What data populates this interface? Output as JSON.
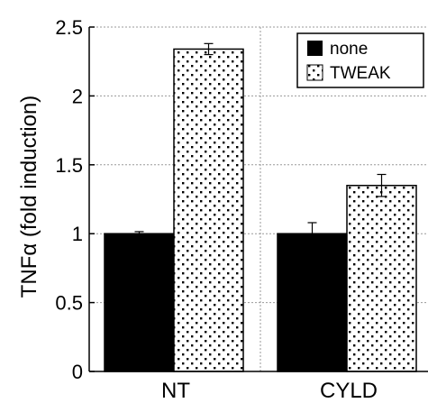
{
  "chart_data": {
    "type": "bar",
    "title": "",
    "xlabel": "",
    "ylabel": {
      "prefix": "TNF",
      "symbol": "α",
      "suffix": " (fold induction)"
    },
    "categories": [
      "NT",
      "CYLD"
    ],
    "series": [
      {
        "name": "none",
        "values": [
          1.0,
          1.0
        ],
        "errors": [
          0.015,
          0.08
        ],
        "color": "#000000",
        "pattern": "solid"
      },
      {
        "name": "TWEAK",
        "values": [
          2.34,
          1.35
        ],
        "errors": [
          0.04,
          0.08
        ],
        "color": "#ffffff",
        "pattern": "dots"
      }
    ],
    "ylim": [
      0,
      2.5
    ],
    "yticks": [
      0,
      0.5,
      1,
      1.5,
      2,
      2.5
    ],
    "ytick_labels": [
      "0",
      "0.5",
      "1",
      "1.5",
      "2",
      "2.5"
    ],
    "grid": true,
    "legend_position": "top-right"
  }
}
